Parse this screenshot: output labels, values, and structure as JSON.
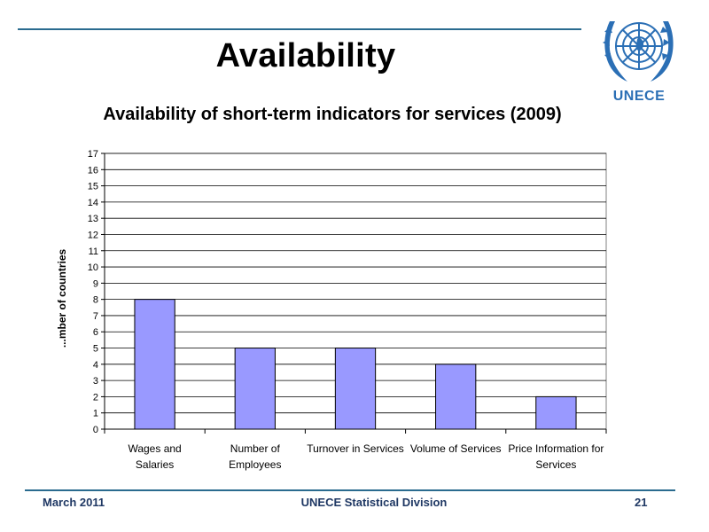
{
  "slide": {
    "title": "Availability",
    "logo_text": "UNECE"
  },
  "footer": {
    "left": "March 2011",
    "center": "UNECE Statistical Division",
    "right": "21"
  },
  "colors": {
    "bar_fill": "#9999ff",
    "rule": "#2a6b8f",
    "footer_text": "#1f3864",
    "logo_blue": "#2b6fb5"
  },
  "chart_data": {
    "type": "bar",
    "title": "Availability of short-term indicators for services (2009)",
    "ylabel": "...mber of countries",
    "xlabel": "",
    "categories": [
      [
        "Wages and",
        "Salaries"
      ],
      [
        "Number of",
        "Employees"
      ],
      [
        "Turnover in Services"
      ],
      [
        "Volume of Services"
      ],
      [
        "Price Information for",
        "Services"
      ]
    ],
    "values": [
      8,
      5,
      5,
      4,
      2
    ],
    "ylim": [
      0,
      17
    ],
    "yticks": [
      "0",
      "1",
      "2",
      "3",
      "4",
      "5",
      "6",
      "7",
      "8",
      "9",
      "10",
      "11",
      "12",
      "13",
      "14",
      "15",
      "16",
      "17"
    ],
    "grid": true,
    "legend": "none"
  }
}
